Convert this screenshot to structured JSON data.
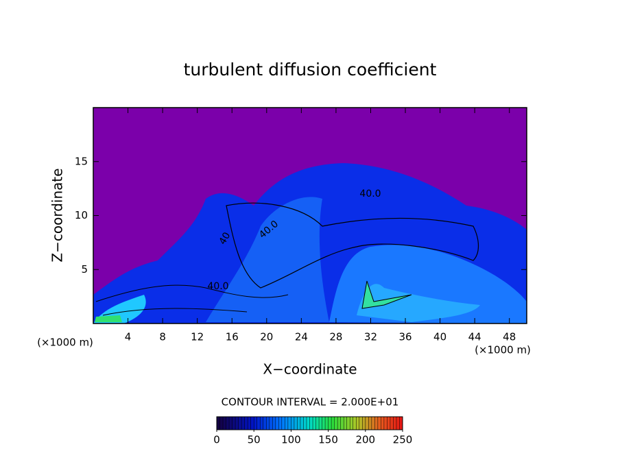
{
  "chart_data": {
    "type": "contour",
    "title": "turbulent diffusion coefficient",
    "xlabel": "X−coordinate",
    "ylabel": "Z−coordinate",
    "x_unit_label": "(×1000 m)",
    "xlim": [
      0,
      50
    ],
    "ylim": [
      0,
      20
    ],
    "xticks": [
      4,
      8,
      12,
      16,
      20,
      24,
      28,
      32,
      36,
      40,
      44,
      48
    ],
    "yticks": [
      5,
      10,
      15
    ],
    "contour_interval_label": "CONTOUR INTERVAL = 2.000E+01",
    "contour_labels": [
      "40.0",
      "40.0",
      "40",
      "40.0"
    ],
    "colorbar": {
      "lim": [
        0,
        250
      ],
      "ticks": [
        0,
        50,
        100,
        150,
        200,
        250
      ]
    },
    "background_color": "#7b00aa"
  }
}
